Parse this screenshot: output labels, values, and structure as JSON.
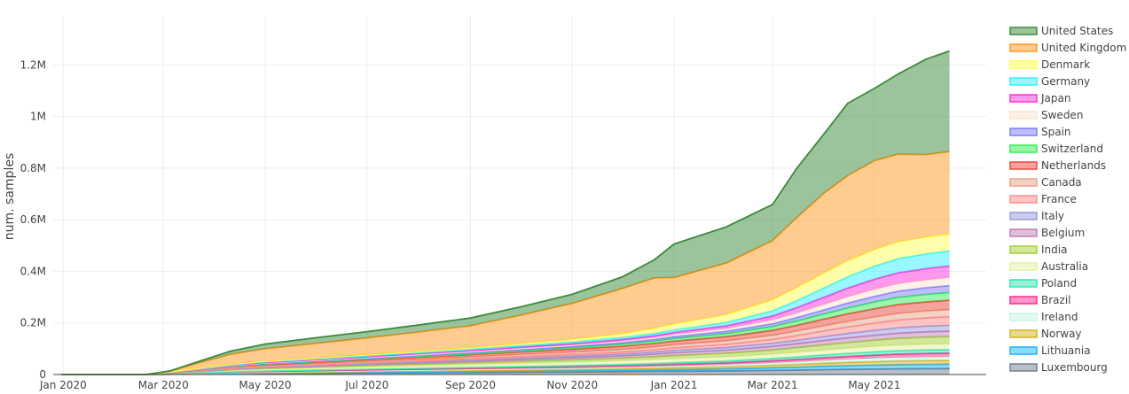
{
  "chart_data": {
    "type": "area",
    "stacked": true,
    "title": "",
    "xlabel": "",
    "ylabel": "num. samples",
    "x_range": [
      "2019-12-26",
      "2021-07-07"
    ],
    "ylim": [
      0,
      1390000
    ],
    "x_ticks": [
      {
        "date": "2020-01-01",
        "label": "Jan 2020"
      },
      {
        "date": "2020-03-01",
        "label": "Mar 2020"
      },
      {
        "date": "2020-05-01",
        "label": "May 2020"
      },
      {
        "date": "2020-07-01",
        "label": "Jul 2020"
      },
      {
        "date": "2020-09-01",
        "label": "Sep 2020"
      },
      {
        "date": "2020-11-01",
        "label": "Nov 2020"
      },
      {
        "date": "2021-01-01",
        "label": "Jan 2021"
      },
      {
        "date": "2021-03-01",
        "label": "Mar 2021"
      },
      {
        "date": "2021-05-01",
        "label": "May 2021"
      }
    ],
    "y_ticks": [
      {
        "value": 0,
        "label": "0"
      },
      {
        "value": 200000,
        "label": "0.2M"
      },
      {
        "value": 400000,
        "label": "0.4M"
      },
      {
        "value": 600000,
        "label": "0.6M"
      },
      {
        "value": 800000,
        "label": "0.8M"
      },
      {
        "value": 1000000,
        "label": "1M"
      },
      {
        "value": 1200000,
        "label": "1.2M"
      }
    ],
    "x": [
      "2019-12-31",
      "2020-02-20",
      "2020-03-05",
      "2020-03-20",
      "2020-04-10",
      "2020-05-01",
      "2020-06-01",
      "2020-07-01",
      "2020-08-01",
      "2020-09-01",
      "2020-10-01",
      "2020-11-01",
      "2020-12-01",
      "2020-12-20",
      "2021-01-01",
      "2021-02-01",
      "2021-03-01",
      "2021-03-15",
      "2021-04-01",
      "2021-04-15",
      "2021-05-01",
      "2021-05-15",
      "2021-06-01",
      "2021-06-15"
    ],
    "legend_position": "right",
    "series": [
      {
        "name": "Luxembourg",
        "color": "#708090",
        "values": [
          0,
          0,
          1000,
          2000,
          3000,
          4000,
          5000,
          6000,
          7000,
          8000,
          9000,
          10000,
          11000,
          12000,
          12500,
          14000,
          16000,
          17000,
          19000,
          20000,
          21000,
          22000,
          22500,
          23000
        ]
      },
      {
        "name": "Lithuania",
        "color": "#1fb3ff",
        "values": [
          0,
          0,
          500,
          1000,
          1500,
          2000,
          2500,
          3000,
          3500,
          4000,
          4500,
          5000,
          5500,
          6000,
          6500,
          8000,
          10000,
          11000,
          13000,
          14000,
          15000,
          16000,
          16500,
          17000
        ]
      },
      {
        "name": "Norway",
        "color": "#d4b21f",
        "values": [
          0,
          0,
          500,
          1000,
          1500,
          2000,
          2500,
          3000,
          3500,
          4000,
          4500,
          5000,
          6000,
          6500,
          7000,
          8000,
          10000,
          11000,
          12000,
          13000,
          14000,
          14500,
          15000,
          15000
        ]
      },
      {
        "name": "Ireland",
        "color": "#c8f5e6",
        "values": [
          0,
          0,
          500,
          1000,
          1500,
          2000,
          2500,
          3000,
          3500,
          4000,
          4500,
          5000,
          6000,
          6500,
          7000,
          8000,
          9000,
          10000,
          11000,
          12000,
          13000,
          13500,
          14000,
          14000
        ]
      },
      {
        "name": "Brazil",
        "color": "#ff2d90",
        "values": [
          0,
          0,
          500,
          1000,
          1500,
          2000,
          2500,
          3000,
          3500,
          4000,
          4500,
          5000,
          5500,
          6000,
          6500,
          7000,
          8000,
          9000,
          10000,
          11000,
          12000,
          13000,
          13500,
          14000
        ]
      },
      {
        "name": "Poland",
        "color": "#2ee8b0",
        "values": [
          0,
          0,
          500,
          1000,
          1500,
          2000,
          2500,
          3000,
          3500,
          4000,
          4500,
          5000,
          5500,
          6000,
          6500,
          7500,
          9000,
          10000,
          11000,
          12000,
          13000,
          13500,
          14000,
          14000
        ]
      },
      {
        "name": "Australia",
        "color": "#e6f0a3",
        "values": [
          0,
          0,
          1000,
          3000,
          6000,
          7000,
          8000,
          9000,
          10000,
          11000,
          12000,
          13000,
          14000,
          15000,
          15500,
          16000,
          17000,
          18000,
          19000,
          20000,
          21000,
          21500,
          22000,
          22000
        ]
      },
      {
        "name": "India",
        "color": "#a3d03a",
        "values": [
          0,
          0,
          500,
          1000,
          2000,
          3000,
          4000,
          5000,
          6000,
          7000,
          8000,
          9000,
          10000,
          11000,
          12000,
          14000,
          16000,
          18000,
          20000,
          22000,
          24000,
          26000,
          27000,
          28000
        ]
      },
      {
        "name": "Belgium",
        "color": "#c07fb4",
        "values": [
          0,
          0,
          500,
          1000,
          2000,
          2500,
          3000,
          4000,
          5000,
          6000,
          7000,
          8000,
          9000,
          10000,
          11000,
          12000,
          14000,
          15000,
          17000,
          18000,
          19000,
          20000,
          21000,
          21000
        ]
      },
      {
        "name": "Italy",
        "color": "#9a9ae0",
        "values": [
          0,
          0,
          500,
          1000,
          1500,
          2000,
          2500,
          3000,
          3500,
          4000,
          5000,
          6000,
          7000,
          8000,
          9000,
          10000,
          12000,
          13000,
          15000,
          17000,
          19000,
          21000,
          22000,
          23000
        ]
      },
      {
        "name": "France",
        "color": "#ff8c8c",
        "values": [
          0,
          0,
          500,
          1000,
          2000,
          2500,
          3000,
          3500,
          4000,
          5000,
          6000,
          7000,
          8000,
          9000,
          10000,
          12000,
          15000,
          18000,
          22000,
          25000,
          28000,
          30000,
          32000,
          33000
        ]
      },
      {
        "name": "Canada",
        "color": "#e8a48c",
        "values": [
          0,
          0,
          500,
          1000,
          2000,
          3000,
          4000,
          5000,
          6000,
          7000,
          8000,
          9000,
          10000,
          11000,
          12000,
          14000,
          16000,
          18000,
          20000,
          22000,
          24000,
          26000,
          27000,
          28000
        ]
      },
      {
        "name": "Netherlands",
        "color": "#f0483c",
        "values": [
          0,
          0,
          1000,
          2000,
          4000,
          5000,
          6000,
          7000,
          8000,
          9000,
          10000,
          11000,
          12000,
          13000,
          14000,
          16000,
          19000,
          22000,
          26000,
          29000,
          32000,
          34000,
          35000,
          36000
        ]
      },
      {
        "name": "Switzerland",
        "color": "#33ee55",
        "values": [
          0,
          0,
          500,
          1000,
          1500,
          2000,
          2500,
          3000,
          3500,
          4000,
          5000,
          6000,
          8000,
          9000,
          10000,
          12000,
          15000,
          17000,
          20000,
          23000,
          26000,
          28000,
          29000,
          30000
        ]
      },
      {
        "name": "Spain",
        "color": "#7b7bff",
        "values": [
          0,
          0,
          500,
          1000,
          1500,
          2000,
          2500,
          3000,
          3500,
          4000,
          4500,
          5000,
          6000,
          7000,
          7500,
          9000,
          11000,
          13000,
          16000,
          19000,
          22000,
          24000,
          26000,
          27000
        ]
      },
      {
        "name": "Sweden",
        "color": "#fde3d0",
        "values": [
          0,
          0,
          500,
          1000,
          1500,
          2000,
          2500,
          3000,
          3500,
          4000,
          4500,
          5000,
          6000,
          7000,
          8000,
          10000,
          14000,
          17000,
          21000,
          24000,
          27000,
          29000,
          30000,
          31000
        ]
      },
      {
        "name": "Japan",
        "color": "#ff33dd",
        "values": [
          0,
          0,
          500,
          1000,
          1500,
          2000,
          2500,
          3000,
          3500,
          4000,
          4500,
          5000,
          6000,
          7000,
          8000,
          11000,
          16000,
          21000,
          28000,
          34000,
          39000,
          42000,
          44000,
          45000
        ]
      },
      {
        "name": "Germany",
        "color": "#33f0ff",
        "values": [
          0,
          0,
          500,
          1000,
          2000,
          2500,
          3000,
          3500,
          4000,
          5000,
          6000,
          7000,
          8000,
          9000,
          10000,
          13000,
          20000,
          27000,
          36000,
          44000,
          51000,
          55000,
          57000,
          58000
        ]
      },
      {
        "name": "Denmark",
        "color": "#ffff55",
        "values": [
          0,
          0,
          500,
          1000,
          2000,
          2500,
          3000,
          4000,
          5000,
          6000,
          8000,
          10000,
          15000,
          20000,
          23000,
          30000,
          42000,
          50000,
          58000,
          62000,
          64000,
          65000,
          65000,
          65000
        ]
      },
      {
        "name": "United Kingdom",
        "color": "#ff9a1f",
        "values": [
          0,
          0,
          2000,
          18000,
          38000,
          48000,
          57000,
          65000,
          75000,
          85000,
          110000,
          140000,
          175000,
          195000,
          180000,
          200000,
          230000,
          270000,
          310000,
          330000,
          345000,
          340000,
          320000,
          320000
        ]
      },
      {
        "name": "United States",
        "color": "#3a8a3a",
        "values": [
          0,
          0,
          1000,
          5000,
          12000,
          18000,
          22000,
          24000,
          27000,
          30000,
          32000,
          35000,
          45000,
          70000,
          130000,
          140000,
          140000,
          190000,
          230000,
          280000,
          280000,
          310000,
          370000,
          390000
        ]
      }
    ]
  }
}
